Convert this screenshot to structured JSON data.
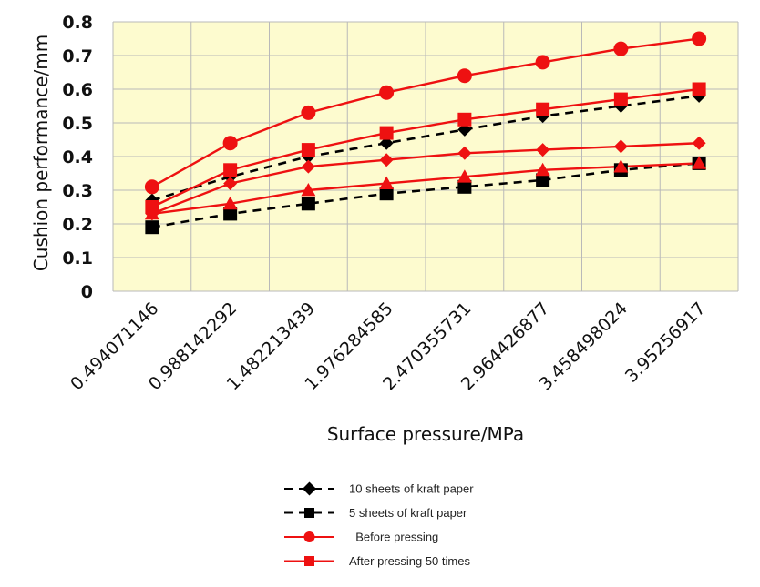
{
  "chart_data": {
    "type": "line",
    "xlabel": "Surface pressure/MPa",
    "ylabel": "Cushion performance/mm",
    "ylim": [
      0,
      0.8
    ],
    "yticks": [
      "0",
      "0.1",
      "0.2",
      "0.3",
      "0.4",
      "0.5",
      "0.6",
      "0.7",
      "0.8"
    ],
    "grid": true,
    "legend_position": "bottom",
    "categories": [
      "0.494071146",
      "0.988142292",
      "1.482213439",
      "1.976284585",
      "2.470355731",
      "2.964426877",
      "3.458498024",
      "3.95256917"
    ],
    "series": [
      {
        "name": "10 sheets of kraft paper",
        "values": [
          0.27,
          0.34,
          0.4,
          0.44,
          0.48,
          0.52,
          0.55,
          0.58
        ],
        "color": "#000000",
        "dash": "dashed",
        "marker": "diamond"
      },
      {
        "name": "5 sheets of kraft paper",
        "values": [
          0.19,
          0.23,
          0.26,
          0.29,
          0.31,
          0.33,
          0.36,
          0.38
        ],
        "color": "#000000",
        "dash": "dashed",
        "marker": "square"
      },
      {
        "name": "Before pressing",
        "values": [
          0.31,
          0.44,
          0.53,
          0.59,
          0.64,
          0.68,
          0.72,
          0.75
        ],
        "color": "#ee1111",
        "dash": "solid",
        "marker": "circle"
      },
      {
        "name": "After pressing 50 times",
        "values": [
          0.25,
          0.36,
          0.42,
          0.47,
          0.51,
          0.54,
          0.57,
          0.6
        ],
        "color": "#ee1111",
        "dash": "solid",
        "marker": "square"
      },
      {
        "name": "",
        "values": [
          0.23,
          0.32,
          0.37,
          0.39,
          0.41,
          0.42,
          0.43,
          0.44
        ],
        "color": "#ee1111",
        "dash": "solid",
        "marker": "diamond"
      },
      {
        "name": "",
        "values": [
          0.23,
          0.26,
          0.3,
          0.32,
          0.34,
          0.36,
          0.37,
          0.38
        ],
        "color": "#ee1111",
        "dash": "solid",
        "marker": "triangle"
      }
    ],
    "legend": [
      {
        "label": "10 sheets of kraft paper",
        "color": "#000000",
        "dash": "dashed",
        "marker": "diamond"
      },
      {
        "label": "5 sheets of kraft paper",
        "color": "#000000",
        "dash": "dashed",
        "marker": "square"
      },
      {
        "label": "  Before pressing",
        "color": "#ee1111",
        "dash": "solid",
        "marker": "circle"
      },
      {
        "label": "After pressing 50 times",
        "color": "#ee1111",
        "dash": "solid",
        "marker": "square"
      }
    ],
    "colors": {
      "plot_background": "#fdfbcf",
      "grid": "#b9b9b9"
    }
  }
}
